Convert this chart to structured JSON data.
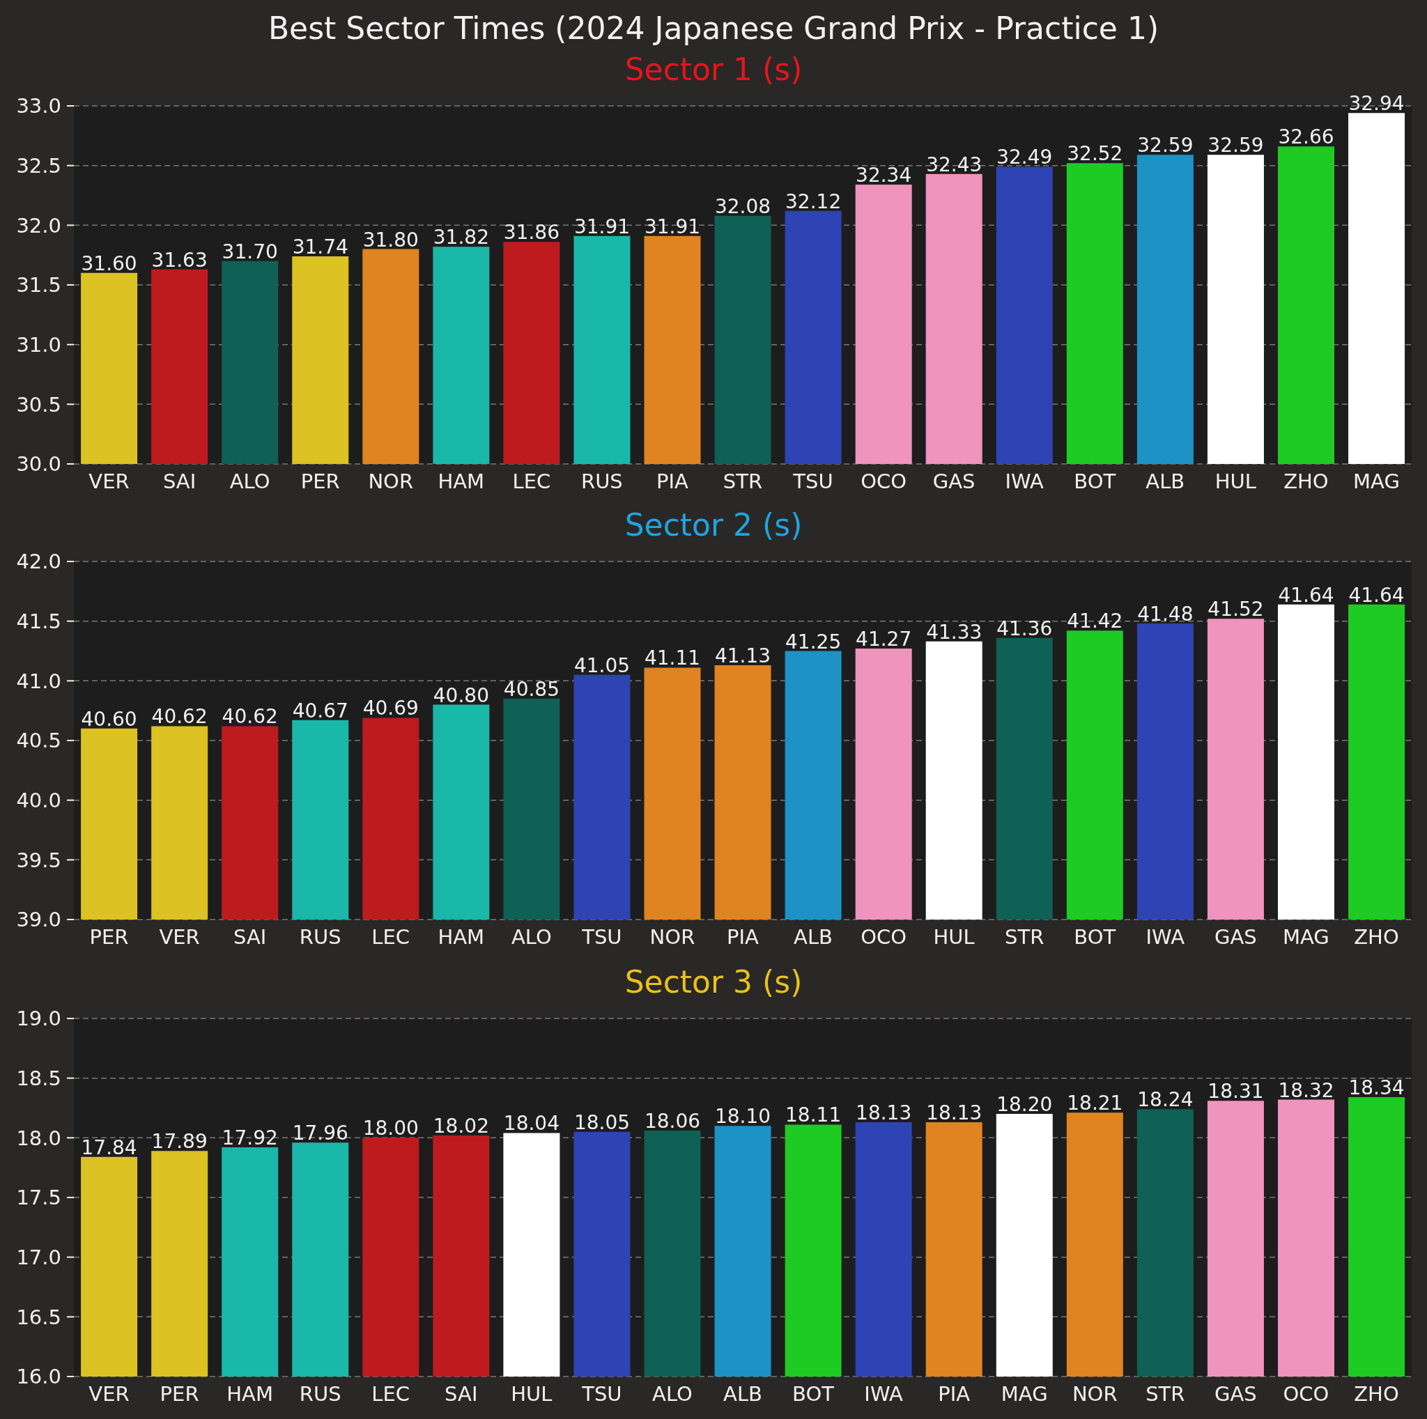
{
  "chart_data": [
    {
      "type": "bar",
      "title": "Best Sector Times (2024 Japanese Grand Prix - Practice 1)",
      "subtitle": "Sector 1 (s)",
      "categories": [
        "VER",
        "SAI",
        "ALO",
        "PER",
        "NOR",
        "HAM",
        "LEC",
        "RUS",
        "PIA",
        "STR",
        "TSU",
        "OCO",
        "GAS",
        "IWA",
        "BOT",
        "ALB",
        "HUL",
        "ZHO",
        "MAG"
      ],
      "values": [
        31.6,
        31.63,
        31.7,
        31.74,
        31.8,
        31.82,
        31.86,
        31.91,
        31.91,
        32.08,
        32.12,
        32.34,
        32.43,
        32.49,
        32.52,
        32.59,
        32.59,
        32.66,
        32.94
      ],
      "value_labels": [
        "31.60",
        "31.63",
        "31.70",
        "31.74",
        "31.80",
        "31.82",
        "31.86",
        "31.91",
        "31.91",
        "32.08",
        "32.12",
        "32.34",
        "32.43",
        "32.49",
        "32.52",
        "32.59",
        "32.59",
        "32.66",
        "32.94"
      ],
      "colors": [
        "#dcc222",
        "#be1b1e",
        "#0f6055",
        "#dcc222",
        "#df8420",
        "#1ab8a8",
        "#be1b1e",
        "#1ab8a8",
        "#df8420",
        "#0f6055",
        "#2e44b4",
        "#ef94bd",
        "#ef94bd",
        "#2e44b4",
        "#1ecb22",
        "#1c93c4",
        "#ffffff",
        "#1ecb22",
        "#ffffff"
      ],
      "ylim": [
        30,
        33
      ],
      "yticks": [
        {
          "value": 30,
          "label": "30.0"
        },
        {
          "value": 30.5,
          "label": "30.5"
        },
        {
          "value": 31,
          "label": "31.0"
        },
        {
          "value": 31.5,
          "label": "31.5"
        },
        {
          "value": 32,
          "label": "32.0"
        },
        {
          "value": 32.5,
          "label": "32.5"
        },
        {
          "value": 33,
          "label": "33.0"
        }
      ],
      "grid": "y"
    },
    {
      "type": "bar",
      "subtitle": "Sector 2 (s)",
      "categories": [
        "PER",
        "VER",
        "SAI",
        "RUS",
        "LEC",
        "HAM",
        "ALO",
        "TSU",
        "NOR",
        "PIA",
        "ALB",
        "OCO",
        "HUL",
        "STR",
        "BOT",
        "IWA",
        "GAS",
        "MAG",
        "ZHO"
      ],
      "values": [
        40.6,
        40.62,
        40.62,
        40.67,
        40.69,
        40.8,
        40.85,
        41.05,
        41.11,
        41.13,
        41.25,
        41.27,
        41.33,
        41.36,
        41.42,
        41.48,
        41.52,
        41.64,
        41.64
      ],
      "value_labels": [
        "40.60",
        "40.62",
        "40.62",
        "40.67",
        "40.69",
        "40.80",
        "40.85",
        "41.05",
        "41.11",
        "41.13",
        "41.25",
        "41.27",
        "41.33",
        "41.36",
        "41.42",
        "41.48",
        "41.52",
        "41.64",
        "41.64"
      ],
      "colors": [
        "#dcc222",
        "#dcc222",
        "#be1b1e",
        "#1ab8a8",
        "#be1b1e",
        "#1ab8a8",
        "#0f6055",
        "#2e44b4",
        "#df8420",
        "#df8420",
        "#1c93c4",
        "#ef94bd",
        "#ffffff",
        "#0f6055",
        "#1ecb22",
        "#2e44b4",
        "#ef94bd",
        "#ffffff",
        "#1ecb22"
      ],
      "ylim": [
        39,
        42
      ],
      "yticks": [
        {
          "value": 39,
          "label": "39.0"
        },
        {
          "value": 39.5,
          "label": "39.5"
        },
        {
          "value": 40,
          "label": "40.0"
        },
        {
          "value": 40.5,
          "label": "40.5"
        },
        {
          "value": 41,
          "label": "41.0"
        },
        {
          "value": 41.5,
          "label": "41.5"
        },
        {
          "value": 42,
          "label": "42.0"
        }
      ],
      "grid": "y"
    },
    {
      "type": "bar",
      "subtitle": "Sector 3 (s)",
      "categories": [
        "VER",
        "PER",
        "HAM",
        "RUS",
        "LEC",
        "SAI",
        "HUL",
        "TSU",
        "ALO",
        "ALB",
        "BOT",
        "IWA",
        "PIA",
        "MAG",
        "NOR",
        "STR",
        "GAS",
        "OCO",
        "ZHO"
      ],
      "values": [
        17.84,
        17.89,
        17.92,
        17.96,
        18.0,
        18.02,
        18.04,
        18.05,
        18.06,
        18.1,
        18.11,
        18.13,
        18.13,
        18.2,
        18.21,
        18.24,
        18.31,
        18.32,
        18.34
      ],
      "value_labels": [
        "17.84",
        "17.89",
        "17.92",
        "17.96",
        "18.00",
        "18.02",
        "18.04",
        "18.05",
        "18.06",
        "18.10",
        "18.11",
        "18.13",
        "18.13",
        "18.20",
        "18.21",
        "18.24",
        "18.31",
        "18.32",
        "18.34"
      ],
      "colors": [
        "#dcc222",
        "#dcc222",
        "#1ab8a8",
        "#1ab8a8",
        "#be1b1e",
        "#be1b1e",
        "#ffffff",
        "#2e44b4",
        "#0f6055",
        "#1c93c4",
        "#1ecb22",
        "#2e44b4",
        "#df8420",
        "#ffffff",
        "#df8420",
        "#0f6055",
        "#ef94bd",
        "#ef94bd",
        "#1ecb22"
      ],
      "ylim": [
        16,
        19
      ],
      "yticks": [
        {
          "value": 16,
          "label": "16.0"
        },
        {
          "value": 16.5,
          "label": "16.5"
        },
        {
          "value": 17,
          "label": "17.0"
        },
        {
          "value": 17.5,
          "label": "17.5"
        },
        {
          "value": 18,
          "label": "18.0"
        },
        {
          "value": 18.5,
          "label": "18.5"
        },
        {
          "value": 19,
          "label": "19.0"
        }
      ],
      "grid": "y"
    }
  ]
}
